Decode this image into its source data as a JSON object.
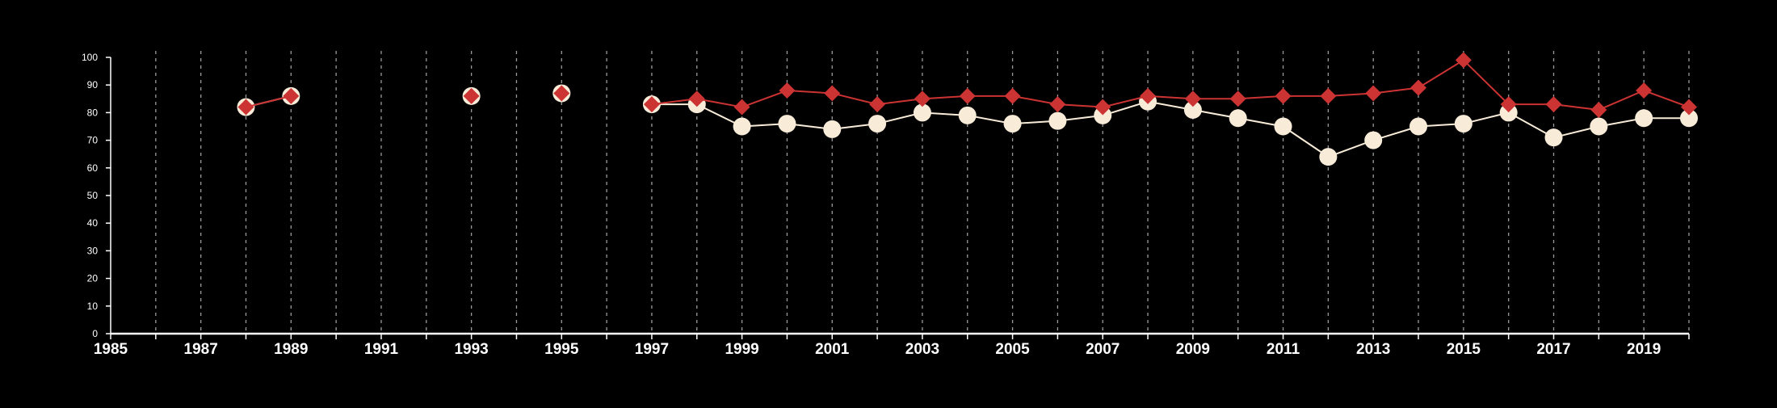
{
  "chart_data": {
    "type": "line",
    "title": "",
    "xlabel": "",
    "ylabel": "",
    "xlim": [
      1985,
      2020
    ],
    "ylim": [
      0,
      100
    ],
    "x_ticks": [
      1985,
      1987,
      1989,
      1991,
      1993,
      1995,
      1997,
      1999,
      2001,
      2003,
      2005,
      2007,
      2009,
      2011,
      2013,
      2015,
      2017,
      2019
    ],
    "y_ticks": [
      0,
      10,
      20,
      30,
      40,
      50,
      60,
      70,
      80,
      90,
      100
    ],
    "grid": "vertical dashed lines at every year",
    "legend": "none",
    "colors": {
      "background": "#000000",
      "axis": "#ffffff",
      "grid": "#9a9a9a",
      "series_red": "#cc3333",
      "series_cream": "#f8ecd9"
    },
    "series": [
      {
        "marker": "circle",
        "color": "#f8ecd9",
        "points": [
          [
            1988,
            82
          ],
          [
            1989,
            86
          ],
          [
            1993,
            86
          ],
          [
            1995,
            87
          ],
          [
            1997,
            83
          ],
          [
            1998,
            83
          ],
          [
            1999,
            75
          ],
          [
            2000,
            76
          ],
          [
            2001,
            74
          ],
          [
            2002,
            76
          ],
          [
            2003,
            80
          ],
          [
            2004,
            79
          ],
          [
            2005,
            76
          ],
          [
            2006,
            77
          ],
          [
            2007,
            79
          ],
          [
            2008,
            84
          ],
          [
            2009,
            81
          ],
          [
            2010,
            78
          ],
          [
            2011,
            75
          ],
          [
            2012,
            64
          ],
          [
            2013,
            70
          ],
          [
            2014,
            75
          ],
          [
            2015,
            76
          ],
          [
            2016,
            80
          ],
          [
            2017,
            71
          ],
          [
            2018,
            75
          ],
          [
            2019,
            78
          ],
          [
            2020,
            78
          ]
        ]
      },
      {
        "marker": "diamond",
        "color": "#cc3333",
        "points": [
          [
            1988,
            82
          ],
          [
            1989,
            86
          ],
          [
            1993,
            86
          ],
          [
            1995,
            87
          ],
          [
            1997,
            83
          ],
          [
            1998,
            85
          ],
          [
            1999,
            82
          ],
          [
            2000,
            88
          ],
          [
            2001,
            87
          ],
          [
            2002,
            83
          ],
          [
            2003,
            85
          ],
          [
            2004,
            86
          ],
          [
            2005,
            86
          ],
          [
            2006,
            83
          ],
          [
            2007,
            82
          ],
          [
            2008,
            86
          ],
          [
            2009,
            85
          ],
          [
            2010,
            85
          ],
          [
            2011,
            86
          ],
          [
            2012,
            86
          ],
          [
            2013,
            87
          ],
          [
            2014,
            89
          ],
          [
            2015,
            99
          ],
          [
            2016,
            83
          ],
          [
            2017,
            83
          ],
          [
            2018,
            81
          ],
          [
            2019,
            88
          ],
          [
            2020,
            82
          ]
        ]
      }
    ]
  }
}
